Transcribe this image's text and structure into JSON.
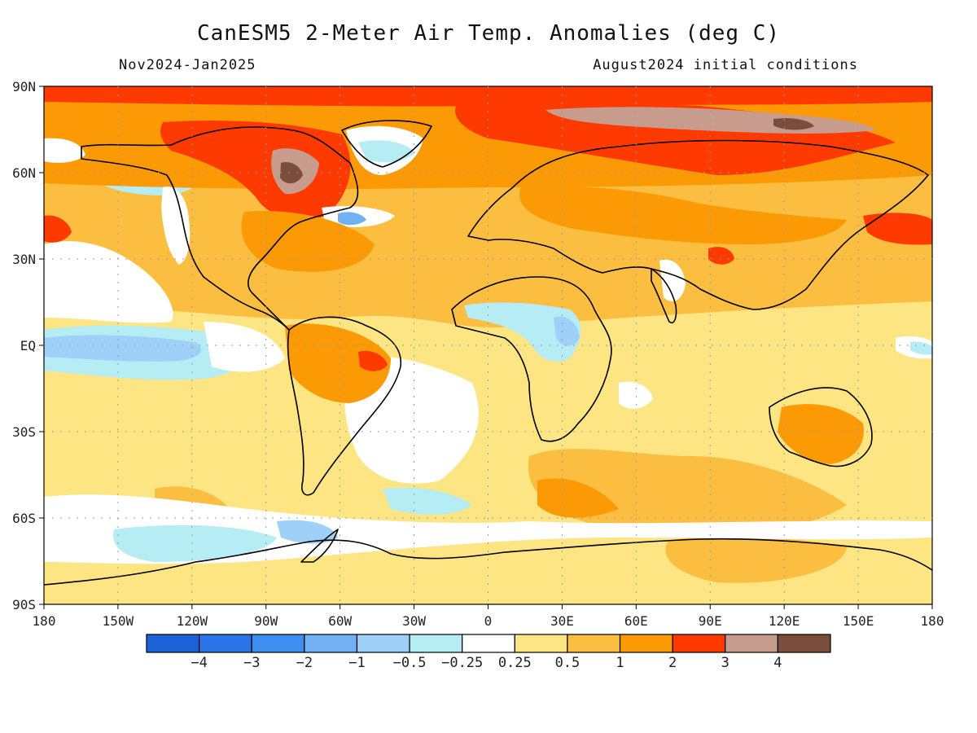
{
  "title": "CanESM5 2-Meter Air Temp. Anomalies (deg C)",
  "period": "Nov2024-Jan2025",
  "initial_conditions": "August2024 initial conditions",
  "lat_labels": [
    "90N",
    "60N",
    "30N",
    "EQ",
    "30S",
    "60S",
    "90S"
  ],
  "lat_values": [
    90,
    60,
    30,
    0,
    -30,
    -60,
    -90
  ],
  "lon_labels": [
    "180",
    "150W",
    "120W",
    "90W",
    "60W",
    "30W",
    "0",
    "30E",
    "60E",
    "90E",
    "120E",
    "150E",
    "180"
  ],
  "lon_values": [
    -180,
    -150,
    -120,
    -90,
    -60,
    -30,
    0,
    30,
    60,
    90,
    120,
    150,
    180
  ],
  "colorbar": {
    "colors": [
      "#1a62d6",
      "#2a74e8",
      "#3d8ef0",
      "#72b0f4",
      "#9fd0f7",
      "#b6ecf4",
      "#ffffff",
      "#fde583",
      "#fcbe41",
      "#fb9a05",
      "#ff3a00",
      "#c89c8c",
      "#7b4d3d"
    ],
    "labels": [
      "−4",
      "−3",
      "−2",
      "−1",
      "−0.5",
      "−0.25",
      "0.25",
      "0.5",
      "1",
      "2",
      "3",
      "4"
    ]
  },
  "colors": {
    "background": "#ffffff",
    "land_outline": "#000000",
    "grid": "#9a9a9a"
  }
}
